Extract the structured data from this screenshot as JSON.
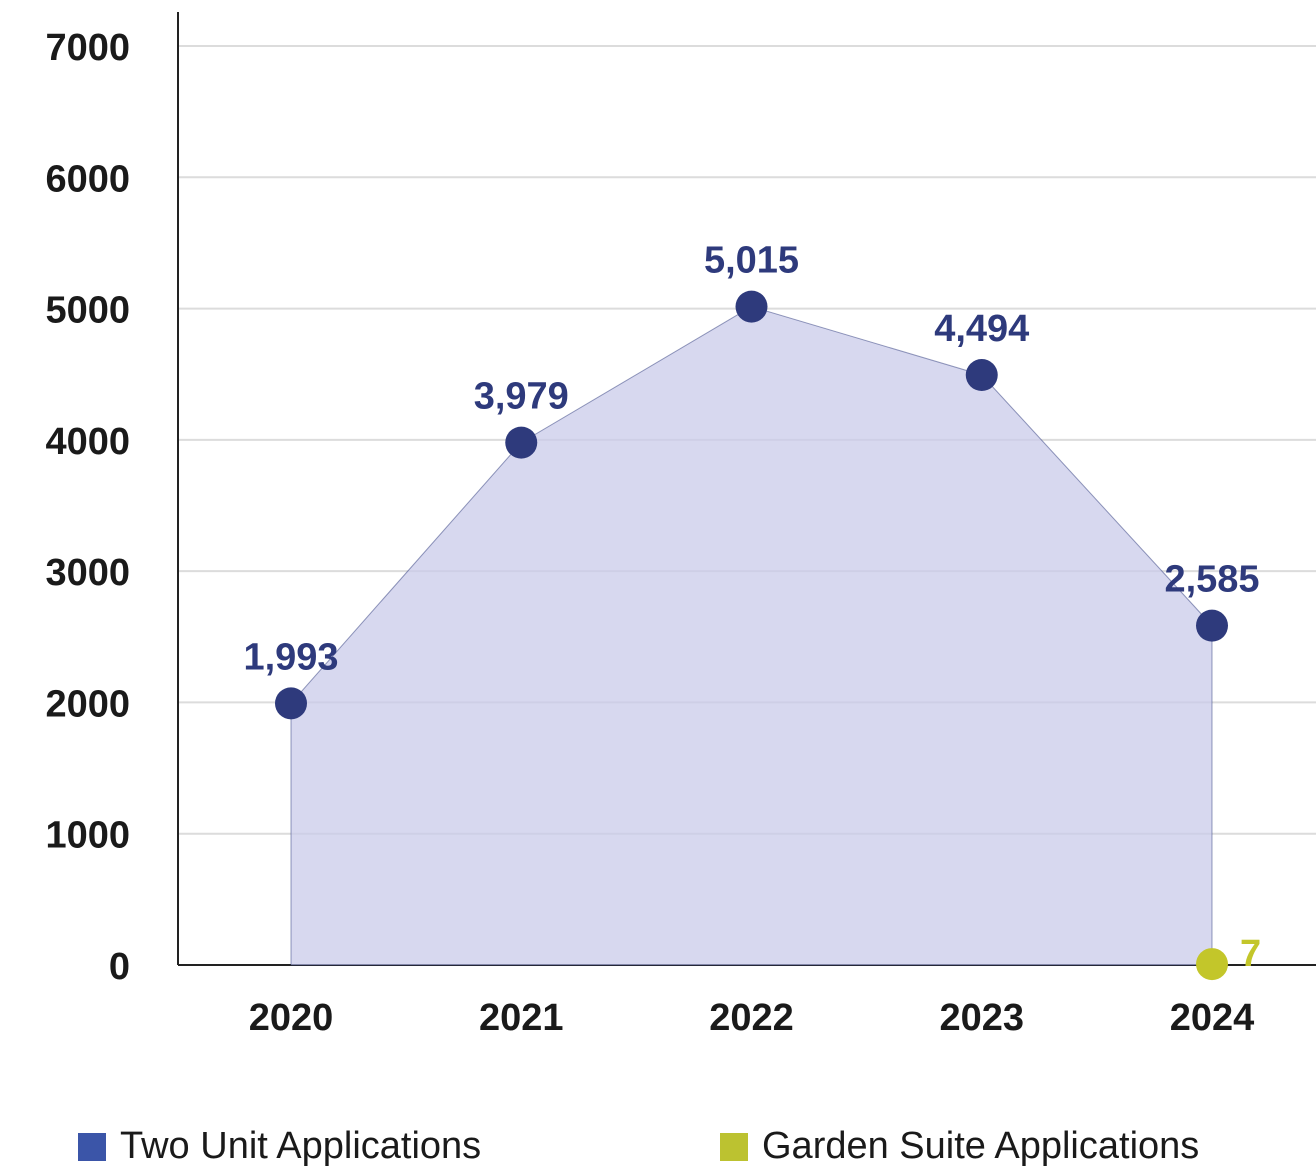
{
  "chart_data": {
    "type": "line",
    "categories": [
      "2020",
      "2021",
      "2022",
      "2023",
      "2024"
    ],
    "series": [
      {
        "name": "Two Unit Applications",
        "color": "#2e3a7c",
        "legend_color": "#3b55a8",
        "area_color": "#c9cbea",
        "values": [
          1993,
          3979,
          5015,
          4494,
          2585
        ],
        "value_labels": [
          "1,993",
          "3,979",
          "5,015",
          "4,494",
          "2,585"
        ]
      },
      {
        "name": "Garden Suite Applications",
        "color": "#c3c62a",
        "legend_color": "#bcc230",
        "values": [
          null,
          null,
          null,
          null,
          7
        ]
      }
    ],
    "ylim": [
      0,
      7000
    ],
    "yticks": [
      0,
      1000,
      2000,
      3000,
      4000,
      5000,
      6000,
      7000
    ],
    "grid": true,
    "legend": "bottom"
  }
}
